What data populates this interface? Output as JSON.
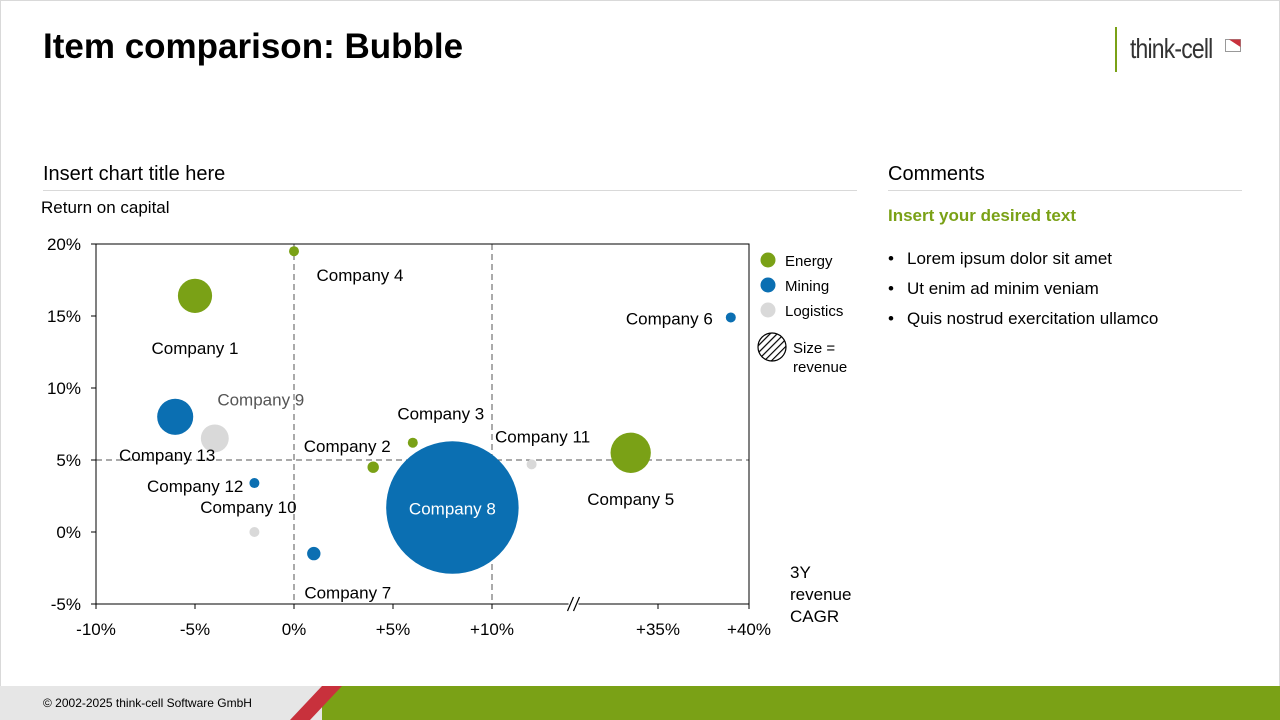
{
  "slide": {
    "title": "Item comparison: Bubble",
    "logo_text": "think-cell",
    "chart_section_title": "Insert chart title here",
    "comments_title": "Comments",
    "comments_subtitle": "Insert your desired text",
    "bullets": [
      "Lorem ipsum dolor sit amet",
      "Ut enim ad minim veniam",
      "Quis nostrud exercitation ullamco"
    ],
    "footer": "© 2002-2025 think-cell Software GmbH",
    "colors": {
      "accent_green": "#7aa116",
      "footer_red": "#c8313c",
      "divider": "#d9d9d9"
    }
  },
  "chart_data": {
    "type": "scatter",
    "ylabel": "Return on capital",
    "xlabel": "3Y revenue CAGR",
    "x_segments": [
      {
        "range": [
          -10,
          10
        ],
        "ticks": [
          -10,
          -5,
          0,
          5,
          10
        ],
        "tick_labels": [
          "-10%",
          "-5%",
          "0%",
          "+5%",
          "+10%"
        ]
      },
      {
        "range": [
          30,
          40
        ],
        "ticks": [
          35,
          40
        ],
        "tick_labels": [
          "+35%",
          "+40%"
        ]
      }
    ],
    "x_axis_break": "between +10% and +35%",
    "yticks": [
      -5,
      0,
      5,
      10,
      15,
      20
    ],
    "ytick_labels": [
      "-5%",
      "0%",
      "5%",
      "10%",
      "15%",
      "20%"
    ],
    "ylim": [
      -5,
      20
    ],
    "reference_lines": {
      "x": 0,
      "y": 5
    },
    "size_legend": "Size = revenue",
    "legend_position": "right",
    "series": [
      {
        "name": "Energy",
        "color": "#7aa116"
      },
      {
        "name": "Mining",
        "color": "#0b6fb2"
      },
      {
        "name": "Logistics",
        "color": "#d9d9d9"
      }
    ],
    "points": [
      {
        "label": "Company 1",
        "series": "Energy",
        "x": -5.0,
        "y": 16.4,
        "size": 36
      },
      {
        "label": "Company 2",
        "series": "Energy",
        "x": 4.0,
        "y": 4.5,
        "size": 4
      },
      {
        "label": "Company 3",
        "series": "Energy",
        "x": 6.0,
        "y": 6.2,
        "size": 0.6
      },
      {
        "label": "Company 4",
        "series": "Energy",
        "x": 0.0,
        "y": 19.5,
        "size": 1.5
      },
      {
        "label": "Company 5",
        "series": "Energy",
        "x": 33.5,
        "y": 5.5,
        "size": 50
      },
      {
        "label": "Company 6",
        "series": "Mining",
        "x": 39.0,
        "y": 14.9,
        "size": 2.5
      },
      {
        "label": "Company 7",
        "series": "Mining",
        "x": 1.0,
        "y": -1.5,
        "size": 5.5
      },
      {
        "label": "Company 8",
        "series": "Mining",
        "x": 8.0,
        "y": 1.7,
        "size": 540
      },
      {
        "label": "Company 9",
        "series": "Logistics",
        "x": -4.0,
        "y": 6.5,
        "size": 24
      },
      {
        "label": "Company 10",
        "series": "Logistics",
        "x": -2.0,
        "y": 0.0,
        "size": 2.4
      },
      {
        "label": "Company 11",
        "series": "Logistics",
        "x": 12.0,
        "y": 4.7,
        "size": 1.1
      },
      {
        "label": "Company 12",
        "series": "Mining",
        "x": -2.0,
        "y": 3.4,
        "size": 0.7
      },
      {
        "label": "Company 13",
        "series": "Mining",
        "x": -6.0,
        "y": 8.0,
        "size": 40
      }
    ]
  }
}
